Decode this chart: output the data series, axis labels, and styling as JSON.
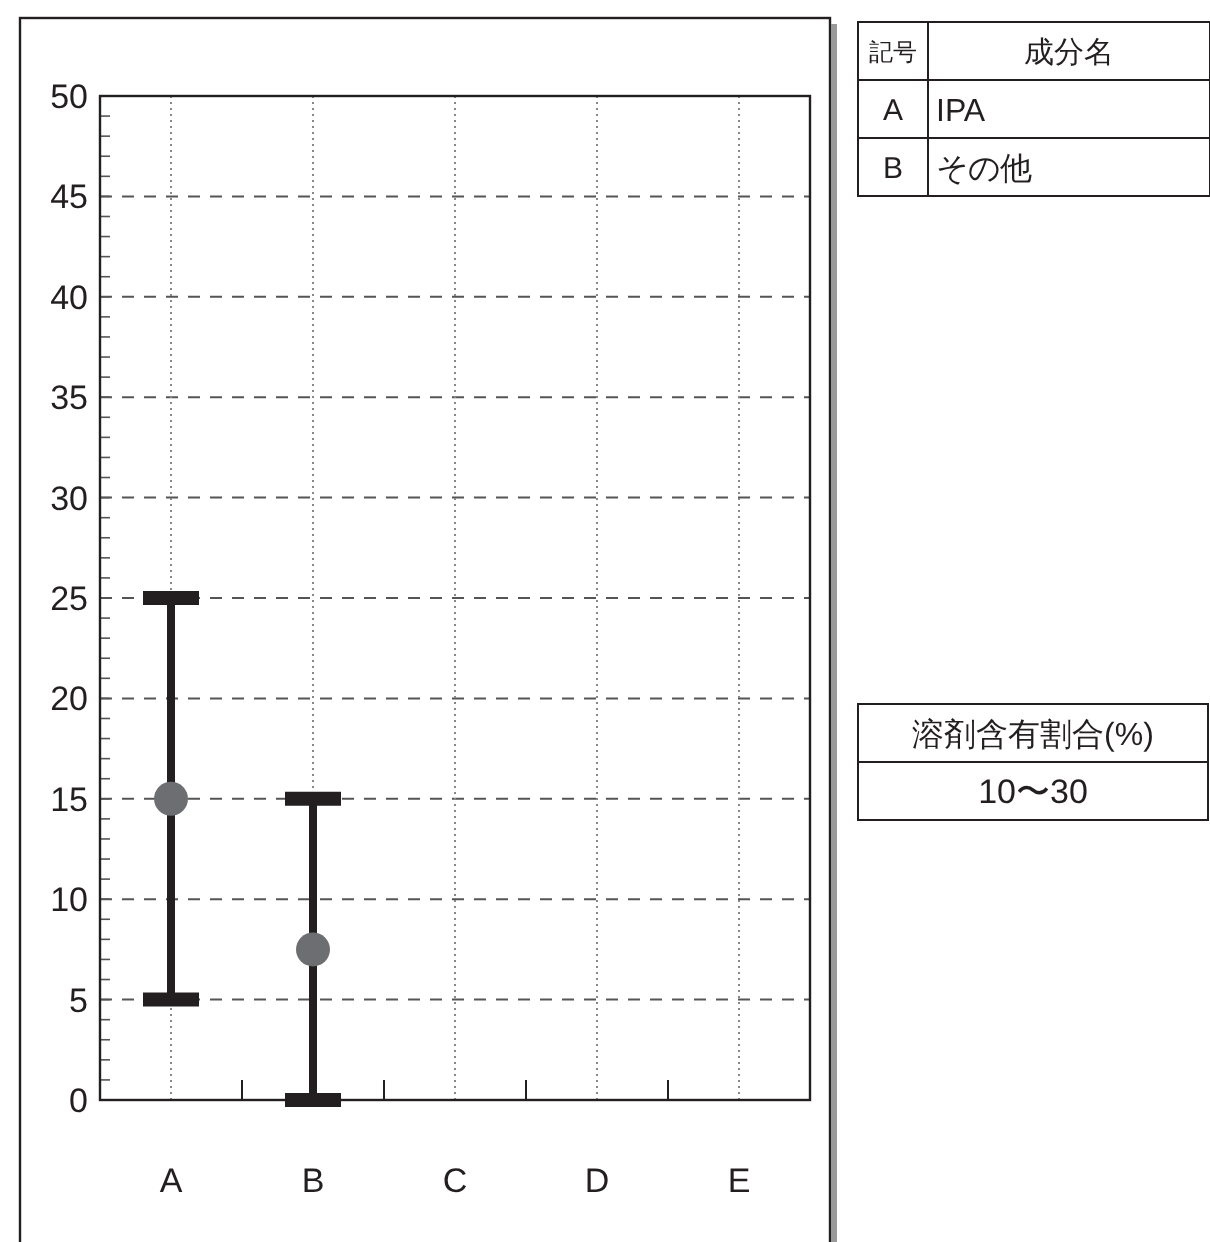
{
  "chart_data": {
    "type": "scatter",
    "categories": [
      "A",
      "B",
      "C",
      "D",
      "E"
    ],
    "series": [
      {
        "color": "#6d6e71",
        "values": [
          15,
          7.5,
          null,
          null,
          null
        ],
        "errors": [
          10,
          7.5,
          null,
          null,
          null
        ]
      }
    ],
    "ylim": [
      0,
      50
    ],
    "yticks": [
      0,
      5,
      10,
      15,
      20,
      25,
      30,
      35,
      40,
      45,
      50
    ],
    "grid": true,
    "marker": "circle",
    "annotations": [
      "記号",
      "成分名",
      "A",
      "IPA",
      "B",
      "その他",
      "溶剤含有割合(%)",
      "10〜30"
    ]
  }
}
